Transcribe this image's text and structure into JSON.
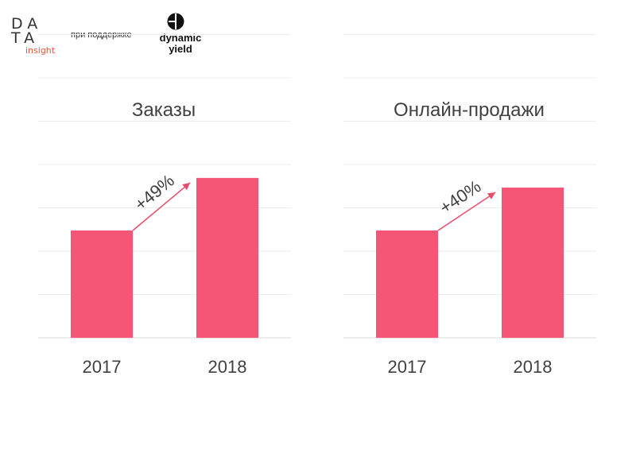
{
  "header": {
    "logo": {
      "line1": "DA",
      "line2": "TA",
      "sub": "insight"
    },
    "support_text": "при поддержке",
    "partner": {
      "line1": "dynamic",
      "line2": "yield"
    }
  },
  "colors": {
    "bar": "#f65676",
    "arrow": "#e84b6a",
    "text": "#404040",
    "grid": "#ececec"
  },
  "chart_data": [
    {
      "type": "bar",
      "title": "Заказы",
      "categories": [
        "2017",
        "2018"
      ],
      "values": [
        100,
        149
      ],
      "annotation": "+49%",
      "ylim": [
        0,
        200
      ],
      "grid": true
    },
    {
      "type": "bar",
      "title": "Онлайн-продажи",
      "categories": [
        "2017",
        "2018"
      ],
      "values": [
        100,
        140
      ],
      "annotation": "+40%",
      "ylim": [
        0,
        200
      ],
      "grid": true
    }
  ]
}
